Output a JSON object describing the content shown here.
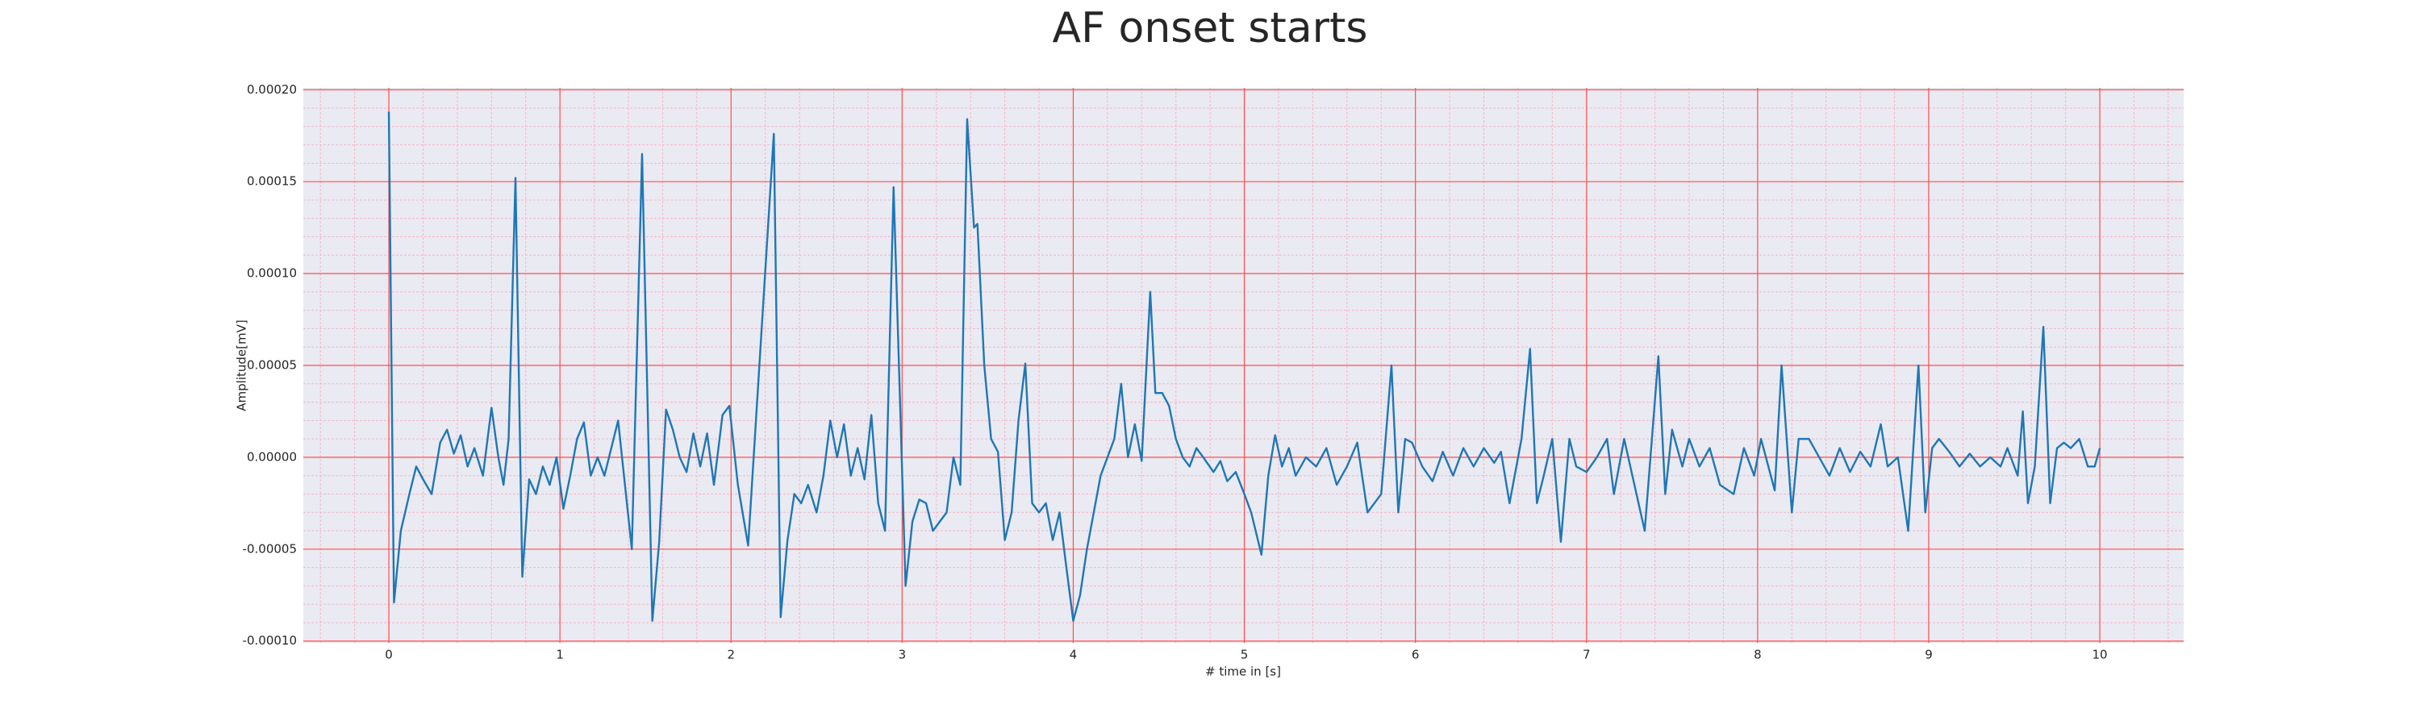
{
  "chart_data": {
    "type": "line",
    "title": "AF onset starts",
    "xlabel": "# time in [s]",
    "ylabel": "Amplitude[mV]",
    "color": "#1f77b4",
    "grid": true,
    "minor_grid": true,
    "background": "#eaeaf2",
    "grid_color": "#ff4d4d",
    "minor_grid_color": "#f4b6c6",
    "xlim": [
      -0.5,
      10.49
    ],
    "ylim": [
      -0.000101,
      0.000201
    ],
    "xticks": [
      0,
      1,
      2,
      3,
      4,
      5,
      6,
      7,
      8,
      9,
      10
    ],
    "yticks": [
      {
        "value": -0.0001,
        "label": "-0.00010"
      },
      {
        "value": -5e-05,
        "label": "-0.00005"
      },
      {
        "value": 0,
        "label": "0.00000"
      },
      {
        "value": 5e-05,
        "label": "0.00005"
      },
      {
        "value": 0.0001,
        "label": "0.00010"
      },
      {
        "value": 0.00015,
        "label": "0.00015"
      },
      {
        "value": 0.0002,
        "label": "0.00020"
      }
    ],
    "x": [
      0,
      0.03,
      0.07,
      0.12,
      0.16,
      0.2,
      0.25,
      0.3,
      0.34,
      0.38,
      0.42,
      0.46,
      0.5,
      0.55,
      0.6,
      0.64,
      0.67,
      0.7,
      0.74,
      0.78,
      0.82,
      0.86,
      0.9,
      0.94,
      0.98,
      1.02,
      1.06,
      1.1,
      1.14,
      1.18,
      1.22,
      1.26,
      1.34,
      1.38,
      1.42,
      1.48,
      1.54,
      1.58,
      1.62,
      1.66,
      1.7,
      1.74,
      1.78,
      1.82,
      1.86,
      1.9,
      1.95,
      1.99,
      2.04,
      2.1,
      2.25,
      2.29,
      2.33,
      2.37,
      2.41,
      2.45,
      2.5,
      2.54,
      2.58,
      2.62,
      2.66,
      2.7,
      2.74,
      2.78,
      2.82,
      2.86,
      2.9,
      2.95,
      3.02,
      3.06,
      3.1,
      3.14,
      3.18,
      3.22,
      3.26,
      3.3,
      3.34,
      3.38,
      3.42,
      3.44,
      3.48,
      3.52,
      3.56,
      3.6,
      3.64,
      3.68,
      3.72,
      3.76,
      3.8,
      3.84,
      3.88,
      3.92,
      3.96,
      4.0,
      4.04,
      4.08,
      4.12,
      4.16,
      4.2,
      4.24,
      4.28,
      4.32,
      4.36,
      4.4,
      4.45,
      4.48,
      4.52,
      4.56,
      4.6,
      4.64,
      4.68,
      4.72,
      4.76,
      4.82,
      4.86,
      4.9,
      4.95,
      5.0,
      5.04,
      5.1,
      5.14,
      5.18,
      5.22,
      5.26,
      5.3,
      5.36,
      5.42,
      5.48,
      5.54,
      5.6,
      5.66,
      5.72,
      5.8,
      5.86,
      5.9,
      5.94,
      5.98,
      6.04,
      6.1,
      6.16,
      6.22,
      6.28,
      6.34,
      6.4,
      6.46,
      6.5,
      6.55,
      6.62,
      6.67,
      6.71,
      6.75,
      6.8,
      6.85,
      6.9,
      6.94,
      7.0,
      7.06,
      7.12,
      7.16,
      7.22,
      7.28,
      7.34,
      7.42,
      7.46,
      7.5,
      7.56,
      7.6,
      7.66,
      7.72,
      7.78,
      7.86,
      7.92,
      7.98,
      8.02,
      8.1,
      8.14,
      8.2,
      8.24,
      8.3,
      8.36,
      8.42,
      8.48,
      8.54,
      8.6,
      8.66,
      8.72,
      8.76,
      8.82,
      8.88,
      8.94,
      8.98,
      9.02,
      9.06,
      9.12,
      9.18,
      9.24,
      9.3,
      9.36,
      9.42,
      9.46,
      9.52,
      9.55,
      9.58,
      9.62,
      9.67,
      9.71,
      9.75,
      9.79,
      9.83,
      9.88,
      9.93,
      9.97,
      10.0
    ],
    "values": [
      0.000188,
      -7.9e-05,
      -4e-05,
      -2e-05,
      -5e-06,
      -1.2e-05,
      -2e-05,
      8e-06,
      1.5e-05,
      2e-06,
      1.2e-05,
      -5e-06,
      5e-06,
      -1e-05,
      2.7e-05,
      0,
      -1.5e-05,
      1e-05,
      0.000152,
      -6.5e-05,
      -1.2e-05,
      -2e-05,
      -5e-06,
      -1.5e-05,
      0,
      -2.8e-05,
      -1e-05,
      1e-05,
      1.9e-05,
      -1e-05,
      0,
      -1e-05,
      2e-05,
      -1.5e-05,
      -5e-05,
      0.000165,
      -8.9e-05,
      -4.6e-05,
      2.6e-05,
      1.5e-05,
      0,
      -8e-06,
      1.3e-05,
      -5e-06,
      1.3e-05,
      -1.5e-05,
      2.3e-05,
      2.8e-05,
      -1.5e-05,
      -4.8e-05,
      0.000176,
      -8.7e-05,
      -4.5e-05,
      -2e-05,
      -2.5e-05,
      -1.5e-05,
      -3e-05,
      -1e-05,
      2e-05,
      0,
      1.8e-05,
      -1e-05,
      5e-06,
      -1.2e-05,
      2.3e-05,
      -2.5e-05,
      -4e-05,
      0.000147,
      -7e-05,
      -3.5e-05,
      -2.3e-05,
      -2.5e-05,
      -4e-05,
      -3.5e-05,
      -3e-05,
      0,
      -1.5e-05,
      0.000184,
      0.000125,
      0.000127,
      5e-05,
      1e-05,
      3e-06,
      -4.5e-05,
      -3e-05,
      2e-05,
      5.1e-05,
      -2.5e-05,
      -3e-05,
      -2.5e-05,
      -4.5e-05,
      -3e-05,
      -6e-05,
      -8.9e-05,
      -7.5e-05,
      -5e-05,
      -3e-05,
      -1e-05,
      0,
      1e-05,
      4e-05,
      0,
      1.8e-05,
      -2e-06,
      9e-05,
      3.5e-05,
      3.5e-05,
      2.8e-05,
      1e-05,
      0,
      -5e-06,
      5e-06,
      0,
      -8e-06,
      -2e-06,
      -1.3e-05,
      -8e-06,
      -2e-05,
      -3e-05,
      -5.3e-05,
      -1e-05,
      1.2e-05,
      -5e-06,
      5e-06,
      -1e-05,
      0,
      -5e-06,
      5e-06,
      -1.5e-05,
      -5e-06,
      8e-06,
      -3e-05,
      -2e-05,
      5e-05,
      -3e-05,
      1e-05,
      8e-06,
      -5e-06,
      -1.3e-05,
      3e-06,
      -1e-05,
      5e-06,
      -5e-06,
      5e-06,
      -3e-06,
      3e-06,
      -2.5e-05,
      1e-05,
      5.9e-05,
      -2.5e-05,
      -1e-05,
      1e-05,
      -4.6e-05,
      1e-05,
      -5e-06,
      -8e-06,
      0,
      1e-05,
      -2e-05,
      1e-05,
      -1.5e-05,
      -4e-05,
      5.5e-05,
      -2e-05,
      1.5e-05,
      -5e-06,
      1e-05,
      -5e-06,
      5e-06,
      -1.5e-05,
      -2e-05,
      5e-06,
      -1e-05,
      1e-05,
      -1.8e-05,
      5e-05,
      -3e-05,
      1e-05,
      1e-05,
      0,
      -1e-05,
      5e-06,
      -8e-06,
      3e-06,
      -5e-06,
      1.8e-05,
      -5e-06,
      0,
      -4e-05,
      5e-05,
      -3e-05,
      5e-06,
      1e-05,
      3e-06,
      -5e-06,
      2e-06,
      -5e-06,
      0,
      -5e-06,
      5e-06,
      -1e-05,
      2.5e-05,
      -2.5e-05,
      -5e-06,
      7.1e-05,
      -2.5e-05,
      5e-06,
      8e-06,
      5e-06,
      1e-05,
      -5e-06,
      -5e-06,
      5e-06
    ]
  }
}
